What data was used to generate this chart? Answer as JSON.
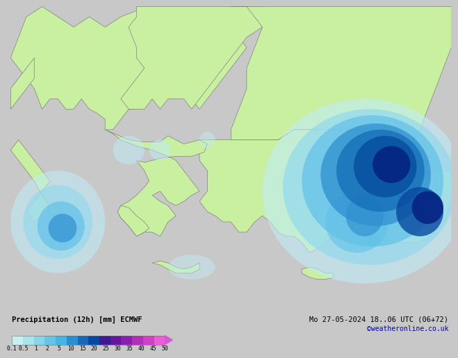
{
  "title_left": "Precipitation (12h) [mm] ECMWF",
  "title_right": "Mo 27-05-2024 18..06 UTC (06+72)",
  "credit": "©weatheronline.co.uk",
  "colorbar_tick_labels": [
    "0.1",
    "0.5",
    "1",
    "2",
    "5",
    "10",
    "15",
    "20",
    "25",
    "30",
    "35",
    "40",
    "45",
    "50"
  ],
  "colorbar_colors": [
    "#c8f0f0",
    "#a8e4ec",
    "#88d4e8",
    "#68c4e4",
    "#48b4e0",
    "#2890d0",
    "#1868b8",
    "#0848a0",
    "#401890",
    "#6018a0",
    "#8820b0",
    "#b030b8",
    "#d040c8",
    "#e860d4"
  ],
  "fig_bg": "#c8c8c8",
  "bottom_bg": "#ffffff",
  "land_color": "#c8f0a0",
  "sea_color": "#c8c8c8",
  "border_color": "#808080",
  "map_xlim": [
    14.0,
    42.0
  ],
  "map_ylim": [
    33.0,
    48.0
  ]
}
